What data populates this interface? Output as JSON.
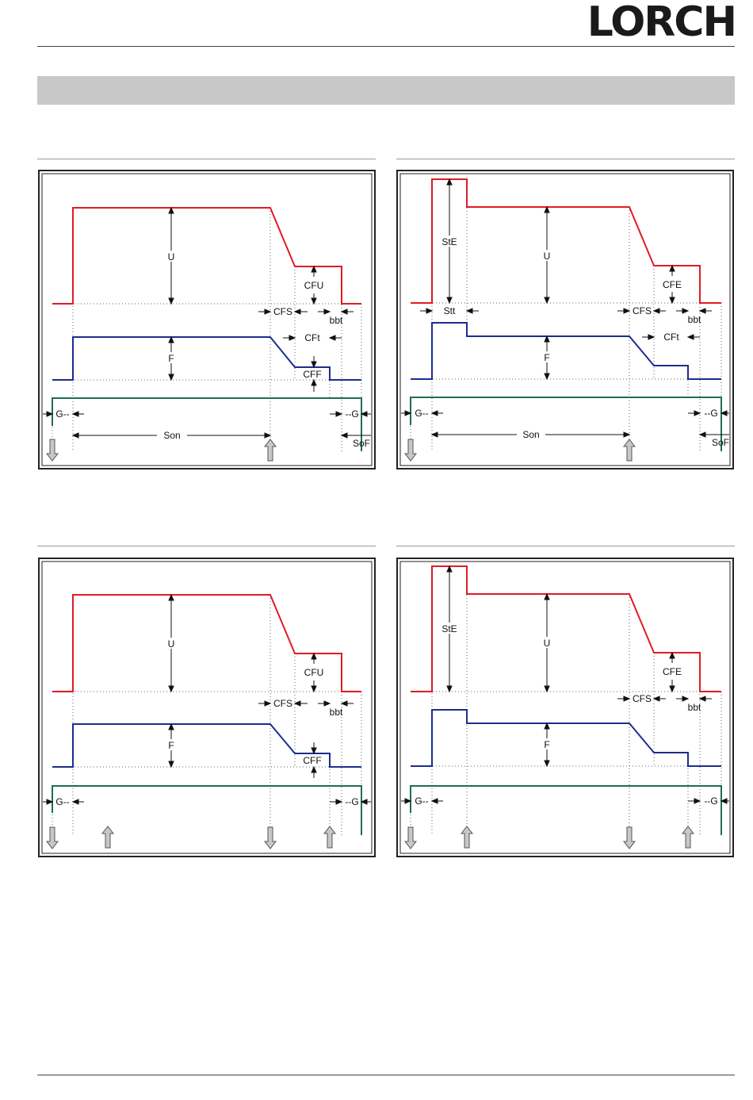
{
  "brand": {
    "logo_text": "LORCH"
  },
  "colors": {
    "voltage": "#e01b24",
    "wire_feed": "#1c2d8f",
    "gas": "#1f6b5a",
    "grid": "#666666",
    "arrow_fill": "#c8c8c8"
  },
  "diagrams": [
    {
      "id": "top-left",
      "labels": {
        "U": "U",
        "CFU": "CFU",
        "CFS": "CFS",
        "bbt": "bbt",
        "CFt": "CFt",
        "F": "F",
        "CFF": "CFF",
        "G_start": "G--",
        "G_end": "--G",
        "Son": "Son",
        "SoF": "SoF"
      }
    },
    {
      "id": "top-right",
      "labels": {
        "StE": "StE",
        "U": "U",
        "CFE": "CFE",
        "Stt": "Stt",
        "CFS": "CFS",
        "bbt": "bbt",
        "CFt": "CFt",
        "F": "F",
        "G_start": "G--",
        "G_end": "--G",
        "Son": "Son",
        "SoF": "SoF"
      }
    },
    {
      "id": "bottom-left",
      "labels": {
        "U": "U",
        "CFU": "CFU",
        "CFS": "CFS",
        "bbt": "bbt",
        "F": "F",
        "CFF": "CFF",
        "G_start": "G--",
        "G_end": "--G"
      }
    },
    {
      "id": "bottom-right",
      "labels": {
        "StE": "StE",
        "U": "U",
        "CFE": "CFE",
        "CFS": "CFS",
        "bbt": "bbt",
        "F": "F",
        "G_start": "G--",
        "G_end": "--G"
      }
    }
  ]
}
